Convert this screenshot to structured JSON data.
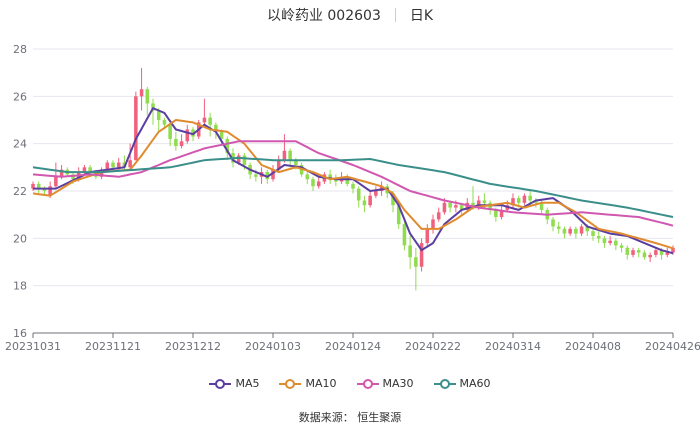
{
  "title": {
    "stock_name": "以岭药业 002603",
    "period": "日K"
  },
  "source": "数据来源：  恒生聚源",
  "chart_data": {
    "type": "candlestick",
    "y_range": [
      16,
      28
    ],
    "y_ticks": [
      16,
      18,
      20,
      22,
      24,
      26,
      28
    ],
    "x_ticks": [
      "20231031",
      "20231121",
      "20231212",
      "20240103",
      "20240124",
      "20240222",
      "20240314",
      "20240408",
      "20240426"
    ],
    "grid": "horizontal",
    "colors": {
      "up": "#f0617d",
      "down": "#8fdc4e",
      "grid": "#e6e6ef",
      "axis": "#6e7079"
    },
    "candles": [
      {
        "o": 22.1,
        "c": 22.3,
        "h": 22.4,
        "l": 22.0
      },
      {
        "o": 22.3,
        "c": 22.1,
        "h": 22.4,
        "l": 21.9
      },
      {
        "o": 22.1,
        "c": 22.0,
        "h": 22.2,
        "l": 21.8
      },
      {
        "o": 21.8,
        "c": 22.2,
        "h": 22.4,
        "l": 21.7
      },
      {
        "o": 22.2,
        "c": 22.6,
        "h": 23.2,
        "l": 22.1
      },
      {
        "o": 22.6,
        "c": 22.9,
        "h": 23.1,
        "l": 22.5
      },
      {
        "o": 22.9,
        "c": 22.7,
        "h": 23.0,
        "l": 22.6
      },
      {
        "o": 22.7,
        "c": 22.5,
        "h": 22.8,
        "l": 22.3
      },
      {
        "o": 22.5,
        "c": 22.8,
        "h": 23.0,
        "l": 22.4
      },
      {
        "o": 22.8,
        "c": 23.0,
        "h": 23.1,
        "l": 22.7
      },
      {
        "o": 23.0,
        "c": 22.8,
        "h": 23.1,
        "l": 22.6
      },
      {
        "o": 22.8,
        "c": 22.6,
        "h": 22.9,
        "l": 22.5
      },
      {
        "o": 22.6,
        "c": 22.9,
        "h": 23.0,
        "l": 22.5
      },
      {
        "o": 22.9,
        "c": 23.2,
        "h": 23.3,
        "l": 22.8
      },
      {
        "o": 23.2,
        "c": 23.0,
        "h": 23.3,
        "l": 22.9
      },
      {
        "o": 23.0,
        "c": 23.2,
        "h": 23.4,
        "l": 22.9
      },
      {
        "o": 23.2,
        "c": 23.0,
        "h": 23.5,
        "l": 22.9
      },
      {
        "o": 23.0,
        "c": 23.3,
        "h": 24.0,
        "l": 22.9
      },
      {
        "o": 23.3,
        "c": 26.0,
        "h": 26.2,
        "l": 23.3
      },
      {
        "o": 26.0,
        "c": 26.3,
        "h": 27.2,
        "l": 25.4
      },
      {
        "o": 26.3,
        "c": 25.7,
        "h": 26.4,
        "l": 25.2
      },
      {
        "o": 25.7,
        "c": 25.4,
        "h": 25.9,
        "l": 24.8
      },
      {
        "o": 25.4,
        "c": 25.0,
        "h": 25.5,
        "l": 24.5
      },
      {
        "o": 25.0,
        "c": 24.8,
        "h": 25.1,
        "l": 24.6
      },
      {
        "o": 24.8,
        "c": 24.2,
        "h": 25.0,
        "l": 23.9
      },
      {
        "o": 24.2,
        "c": 23.9,
        "h": 24.5,
        "l": 23.7
      },
      {
        "o": 23.9,
        "c": 24.1,
        "h": 24.4,
        "l": 23.8
      },
      {
        "o": 24.1,
        "c": 24.6,
        "h": 24.8,
        "l": 24.0
      },
      {
        "o": 24.6,
        "c": 24.3,
        "h": 24.7,
        "l": 24.1
      },
      {
        "o": 24.3,
        "c": 24.9,
        "h": 25.0,
        "l": 24.2
      },
      {
        "o": 24.9,
        "c": 25.1,
        "h": 25.9,
        "l": 24.8
      },
      {
        "o": 25.1,
        "c": 24.8,
        "h": 25.3,
        "l": 24.3
      },
      {
        "o": 24.8,
        "c": 24.5,
        "h": 24.9,
        "l": 24.2
      },
      {
        "o": 24.5,
        "c": 24.2,
        "h": 24.6,
        "l": 23.9
      },
      {
        "o": 24.2,
        "c": 23.6,
        "h": 24.3,
        "l": 23.4
      },
      {
        "o": 23.6,
        "c": 23.2,
        "h": 23.8,
        "l": 23.0
      },
      {
        "o": 23.2,
        "c": 23.5,
        "h": 23.6,
        "l": 23.1
      },
      {
        "o": 23.5,
        "c": 23.1,
        "h": 23.6,
        "l": 22.9
      },
      {
        "o": 23.1,
        "c": 22.7,
        "h": 23.2,
        "l": 22.5
      },
      {
        "o": 22.7,
        "c": 22.6,
        "h": 22.9,
        "l": 22.4
      },
      {
        "o": 22.6,
        "c": 22.8,
        "h": 23.0,
        "l": 22.3
      },
      {
        "o": 22.8,
        "c": 22.5,
        "h": 22.9,
        "l": 22.3
      },
      {
        "o": 22.5,
        "c": 22.9,
        "h": 23.1,
        "l": 22.4
      },
      {
        "o": 22.9,
        "c": 23.3,
        "h": 23.5,
        "l": 22.8
      },
      {
        "o": 23.3,
        "c": 23.7,
        "h": 24.4,
        "l": 23.2
      },
      {
        "o": 23.7,
        "c": 23.3,
        "h": 23.8,
        "l": 23.0
      },
      {
        "o": 23.3,
        "c": 23.1,
        "h": 23.4,
        "l": 22.9
      },
      {
        "o": 23.1,
        "c": 22.7,
        "h": 23.2,
        "l": 22.6
      },
      {
        "o": 22.7,
        "c": 22.5,
        "h": 22.9,
        "l": 22.3
      },
      {
        "o": 22.5,
        "c": 22.2,
        "h": 22.6,
        "l": 22.0
      },
      {
        "o": 22.2,
        "c": 22.4,
        "h": 22.6,
        "l": 22.1
      },
      {
        "o": 22.4,
        "c": 22.7,
        "h": 22.8,
        "l": 22.3
      },
      {
        "o": 22.7,
        "c": 22.5,
        "h": 22.9,
        "l": 22.3
      },
      {
        "o": 22.5,
        "c": 22.4,
        "h": 22.7,
        "l": 22.2
      },
      {
        "o": 22.4,
        "c": 22.6,
        "h": 22.8,
        "l": 22.3
      },
      {
        "o": 22.6,
        "c": 22.3,
        "h": 22.7,
        "l": 22.2
      },
      {
        "o": 22.3,
        "c": 22.1,
        "h": 22.4,
        "l": 21.9
      },
      {
        "o": 22.1,
        "c": 21.6,
        "h": 22.2,
        "l": 21.3
      },
      {
        "o": 21.6,
        "c": 21.4,
        "h": 21.8,
        "l": 21.1
      },
      {
        "o": 21.4,
        "c": 21.8,
        "h": 22.0,
        "l": 21.3
      },
      {
        "o": 21.8,
        "c": 22.0,
        "h": 22.2,
        "l": 21.7
      },
      {
        "o": 22.0,
        "c": 22.2,
        "h": 22.4,
        "l": 21.8
      },
      {
        "o": 22.2,
        "c": 21.9,
        "h": 22.3,
        "l": 21.7
      },
      {
        "o": 21.9,
        "c": 21.4,
        "h": 22.0,
        "l": 21.1
      },
      {
        "o": 21.4,
        "c": 20.6,
        "h": 21.5,
        "l": 20.4
      },
      {
        "o": 20.6,
        "c": 19.7,
        "h": 20.8,
        "l": 19.5
      },
      {
        "o": 19.7,
        "c": 19.2,
        "h": 20.1,
        "l": 18.7
      },
      {
        "o": 19.2,
        "c": 18.8,
        "h": 19.6,
        "l": 17.8
      },
      {
        "o": 18.8,
        "c": 19.8,
        "h": 20.0,
        "l": 18.6
      },
      {
        "o": 19.8,
        "c": 20.4,
        "h": 20.6,
        "l": 19.7
      },
      {
        "o": 20.4,
        "c": 20.8,
        "h": 21.0,
        "l": 20.2
      },
      {
        "o": 20.8,
        "c": 21.1,
        "h": 21.3,
        "l": 20.7
      },
      {
        "o": 21.1,
        "c": 21.5,
        "h": 21.7,
        "l": 21.0
      },
      {
        "o": 21.5,
        "c": 21.3,
        "h": 21.6,
        "l": 21.1
      },
      {
        "o": 21.3,
        "c": 21.4,
        "h": 21.6,
        "l": 21.1
      },
      {
        "o": 21.4,
        "c": 21.2,
        "h": 21.5,
        "l": 21.0
      },
      {
        "o": 21.2,
        "c": 21.5,
        "h": 21.7,
        "l": 21.1
      },
      {
        "o": 21.5,
        "c": 21.3,
        "h": 22.2,
        "l": 21.2
      },
      {
        "o": 21.3,
        "c": 21.6,
        "h": 21.8,
        "l": 21.2
      },
      {
        "o": 21.6,
        "c": 21.5,
        "h": 21.9,
        "l": 21.3
      },
      {
        "o": 21.5,
        "c": 21.2,
        "h": 21.6,
        "l": 21.0
      },
      {
        "o": 21.2,
        "c": 20.9,
        "h": 21.3,
        "l": 20.7
      },
      {
        "o": 20.9,
        "c": 21.2,
        "h": 21.4,
        "l": 20.8
      },
      {
        "o": 21.2,
        "c": 21.4,
        "h": 21.6,
        "l": 21.1
      },
      {
        "o": 21.4,
        "c": 21.7,
        "h": 21.9,
        "l": 21.3
      },
      {
        "o": 21.7,
        "c": 21.5,
        "h": 21.8,
        "l": 21.3
      },
      {
        "o": 21.5,
        "c": 21.8,
        "h": 21.9,
        "l": 21.4
      },
      {
        "o": 21.8,
        "c": 21.6,
        "h": 22.0,
        "l": 21.4
      },
      {
        "o": 21.6,
        "c": 21.5,
        "h": 21.7,
        "l": 21.3
      },
      {
        "o": 21.5,
        "c": 21.2,
        "h": 21.6,
        "l": 21.0
      },
      {
        "o": 21.2,
        "c": 20.8,
        "h": 21.3,
        "l": 20.6
      },
      {
        "o": 20.8,
        "c": 20.5,
        "h": 20.9,
        "l": 20.3
      },
      {
        "o": 20.5,
        "c": 20.4,
        "h": 20.7,
        "l": 20.2
      },
      {
        "o": 20.4,
        "c": 20.2,
        "h": 20.5,
        "l": 20.0
      },
      {
        "o": 20.2,
        "c": 20.4,
        "h": 20.5,
        "l": 20.1
      },
      {
        "o": 20.4,
        "c": 20.2,
        "h": 20.5,
        "l": 20.0
      },
      {
        "o": 20.2,
        "c": 20.5,
        "h": 20.6,
        "l": 20.1
      },
      {
        "o": 20.5,
        "c": 20.3,
        "h": 20.6,
        "l": 20.1
      },
      {
        "o": 20.3,
        "c": 20.1,
        "h": 20.4,
        "l": 19.9
      },
      {
        "o": 20.1,
        "c": 20.0,
        "h": 20.3,
        "l": 19.8
      },
      {
        "o": 20.0,
        "c": 19.8,
        "h": 20.1,
        "l": 19.6
      },
      {
        "o": 19.8,
        "c": 19.9,
        "h": 20.1,
        "l": 19.7
      },
      {
        "o": 19.9,
        "c": 19.7,
        "h": 20.0,
        "l": 19.5
      },
      {
        "o": 19.7,
        "c": 19.6,
        "h": 19.8,
        "l": 19.4
      },
      {
        "o": 19.6,
        "c": 19.3,
        "h": 19.7,
        "l": 19.1
      },
      {
        "o": 19.3,
        "c": 19.5,
        "h": 19.6,
        "l": 19.2
      },
      {
        "o": 19.5,
        "c": 19.4,
        "h": 19.6,
        "l": 19.2
      },
      {
        "o": 19.4,
        "c": 19.2,
        "h": 19.5,
        "l": 19.1
      },
      {
        "o": 19.2,
        "c": 19.3,
        "h": 19.4,
        "l": 19.0
      },
      {
        "o": 19.3,
        "c": 19.5,
        "h": 19.6,
        "l": 19.2
      },
      {
        "o": 19.5,
        "c": 19.3,
        "h": 19.6,
        "l": 19.1
      },
      {
        "o": 19.3,
        "c": 19.4,
        "h": 19.6,
        "l": 19.2
      },
      {
        "o": 19.4,
        "c": 19.6,
        "h": 19.7,
        "l": 19.3
      }
    ],
    "series": [
      {
        "name": "MA5",
        "color": "#5b3ea1",
        "knots": [
          [
            0,
            22.1
          ],
          [
            4,
            22.1
          ],
          [
            10,
            22.8
          ],
          [
            16,
            23.0
          ],
          [
            18,
            24.2
          ],
          [
            21,
            25.5
          ],
          [
            23,
            25.3
          ],
          [
            25,
            24.6
          ],
          [
            28,
            24.4
          ],
          [
            30,
            24.8
          ],
          [
            32,
            24.5
          ],
          [
            35,
            23.3
          ],
          [
            38,
            22.9
          ],
          [
            41,
            22.6
          ],
          [
            44,
            23.1
          ],
          [
            47,
            23.0
          ],
          [
            50,
            22.6
          ],
          [
            53,
            22.5
          ],
          [
            56,
            22.5
          ],
          [
            59,
            22.0
          ],
          [
            62,
            22.1
          ],
          [
            64,
            21.4
          ],
          [
            66,
            20.2
          ],
          [
            68,
            19.5
          ],
          [
            70,
            19.8
          ],
          [
            72,
            20.6
          ],
          [
            75,
            21.2
          ],
          [
            78,
            21.4
          ],
          [
            82,
            21.4
          ],
          [
            85,
            21.2
          ],
          [
            88,
            21.6
          ],
          [
            91,
            21.7
          ],
          [
            94,
            21.2
          ],
          [
            97,
            20.5
          ],
          [
            101,
            20.2
          ],
          [
            104,
            20.1
          ],
          [
            107,
            19.8
          ],
          [
            110,
            19.5
          ],
          [
            113,
            19.3
          ],
          [
            117,
            19.4
          ]
        ]
      },
      {
        "name": "MA10",
        "color": "#e08b2f",
        "knots": [
          [
            0,
            21.9
          ],
          [
            3,
            21.8
          ],
          [
            7,
            22.4
          ],
          [
            12,
            22.8
          ],
          [
            17,
            22.9
          ],
          [
            19,
            23.5
          ],
          [
            22,
            24.5
          ],
          [
            25,
            25.0
          ],
          [
            28,
            24.9
          ],
          [
            31,
            24.6
          ],
          [
            34,
            24.5
          ],
          [
            37,
            24.0
          ],
          [
            40,
            23.1
          ],
          [
            43,
            22.8
          ],
          [
            46,
            23.0
          ],
          [
            49,
            22.8
          ],
          [
            52,
            22.5
          ],
          [
            55,
            22.6
          ],
          [
            58,
            22.4
          ],
          [
            61,
            22.2
          ],
          [
            63,
            21.9
          ],
          [
            65,
            21.2
          ],
          [
            68,
            20.4
          ],
          [
            71,
            20.4
          ],
          [
            74,
            20.8
          ],
          [
            77,
            21.3
          ],
          [
            80,
            21.4
          ],
          [
            83,
            21.5
          ],
          [
            86,
            21.3
          ],
          [
            89,
            21.5
          ],
          [
            92,
            21.5
          ],
          [
            95,
            21.1
          ],
          [
            99,
            20.4
          ],
          [
            103,
            20.2
          ],
          [
            106,
            20.0
          ],
          [
            109,
            19.8
          ],
          [
            113,
            19.5
          ],
          [
            117,
            19.4
          ]
        ]
      },
      {
        "name": "MA30",
        "color": "#d158b0",
        "knots": [
          [
            0,
            22.7
          ],
          [
            5,
            22.6
          ],
          [
            10,
            22.7
          ],
          [
            15,
            22.6
          ],
          [
            19,
            22.8
          ],
          [
            24,
            23.3
          ],
          [
            30,
            23.8
          ],
          [
            36,
            24.1
          ],
          [
            41,
            24.1
          ],
          [
            46,
            24.1
          ],
          [
            50,
            23.6
          ],
          [
            56,
            23.1
          ],
          [
            61,
            22.6
          ],
          [
            66,
            22.0
          ],
          [
            72,
            21.6
          ],
          [
            78,
            21.3
          ],
          [
            84,
            21.1
          ],
          [
            90,
            21.0
          ],
          [
            96,
            21.1
          ],
          [
            101,
            21.0
          ],
          [
            106,
            20.9
          ],
          [
            111,
            20.6
          ],
          [
            117,
            20.2
          ]
        ]
      },
      {
        "name": "MA60",
        "color": "#3b8f8a",
        "knots": [
          [
            0,
            23.0
          ],
          [
            6,
            22.8
          ],
          [
            12,
            22.8
          ],
          [
            18,
            22.9
          ],
          [
            24,
            23.0
          ],
          [
            30,
            23.3
          ],
          [
            36,
            23.4
          ],
          [
            42,
            23.3
          ],
          [
            48,
            23.3
          ],
          [
            54,
            23.3
          ],
          [
            59,
            23.35
          ],
          [
            64,
            23.1
          ],
          [
            72,
            22.8
          ],
          [
            80,
            22.3
          ],
          [
            88,
            22.0
          ],
          [
            96,
            21.6
          ],
          [
            104,
            21.3
          ],
          [
            112,
            20.9
          ],
          [
            117,
            20.6
          ]
        ]
      }
    ]
  }
}
